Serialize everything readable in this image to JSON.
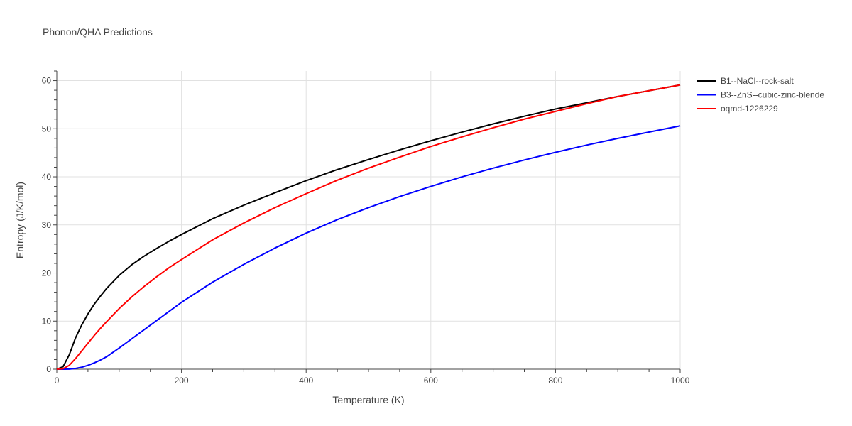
{
  "chart_data": {
    "type": "line",
    "title": "Phonon/QHA Predictions",
    "xlabel": "Temperature (K)",
    "ylabel": "Entropy (J/K/mol)",
    "xlim": [
      0,
      1000
    ],
    "ylim": [
      0,
      62
    ],
    "x_ticks": [
      0,
      200,
      400,
      600,
      800,
      1000
    ],
    "y_ticks": [
      0,
      10,
      20,
      30,
      40,
      50,
      60
    ],
    "grid": true,
    "legend_position": "top-right outside",
    "series": [
      {
        "name": "B1--NaCl--rock-salt",
        "color": "#000000",
        "x": [
          0,
          10,
          20,
          30,
          40,
          50,
          60,
          70,
          80,
          100,
          120,
          140,
          160,
          180,
          200,
          250,
          300,
          350,
          400,
          450,
          500,
          550,
          600,
          650,
          700,
          750,
          800,
          850,
          900,
          950,
          1000
        ],
        "y": [
          0,
          0.5,
          3,
          6.5,
          9.2,
          11.5,
          13.5,
          15.2,
          16.8,
          19.5,
          21.7,
          23.5,
          25.1,
          26.6,
          28.0,
          31.3,
          34.1,
          36.7,
          39.2,
          41.5,
          43.6,
          45.6,
          47.5,
          49.3,
          51.0,
          52.6,
          54.1,
          55.4,
          56.7,
          57.9,
          59.1
        ]
      },
      {
        "name": "B3--ZnS--cubic-zinc-blende",
        "color": "#0000ff",
        "x": [
          0,
          10,
          20,
          30,
          40,
          50,
          60,
          70,
          80,
          100,
          120,
          140,
          160,
          180,
          200,
          250,
          300,
          350,
          400,
          450,
          500,
          550,
          600,
          650,
          700,
          750,
          800,
          850,
          900,
          950,
          1000
        ],
        "y": [
          0,
          0,
          0.02,
          0.15,
          0.4,
          0.8,
          1.3,
          1.9,
          2.6,
          4.4,
          6.3,
          8.2,
          10.1,
          12.0,
          13.9,
          18.1,
          21.8,
          25.2,
          28.3,
          31.1,
          33.6,
          35.9,
          38.0,
          40.0,
          41.8,
          43.5,
          45.1,
          46.6,
          48.0,
          49.3,
          50.6
        ]
      },
      {
        "name": "oqmd-1226229",
        "color": "#ff0000",
        "x": [
          0,
          10,
          20,
          30,
          40,
          50,
          60,
          70,
          80,
          100,
          120,
          140,
          160,
          180,
          200,
          250,
          300,
          350,
          400,
          450,
          500,
          550,
          600,
          650,
          700,
          750,
          800,
          850,
          900,
          950,
          1000
        ],
        "y": [
          0,
          0.1,
          0.8,
          2.2,
          3.8,
          5.4,
          7.0,
          8.5,
          9.9,
          12.6,
          15.0,
          17.2,
          19.2,
          21.1,
          22.8,
          26.9,
          30.4,
          33.6,
          36.5,
          39.3,
          41.8,
          44.1,
          46.3,
          48.3,
          50.2,
          52.0,
          53.6,
          55.2,
          56.7,
          57.9,
          59.1
        ]
      }
    ]
  }
}
